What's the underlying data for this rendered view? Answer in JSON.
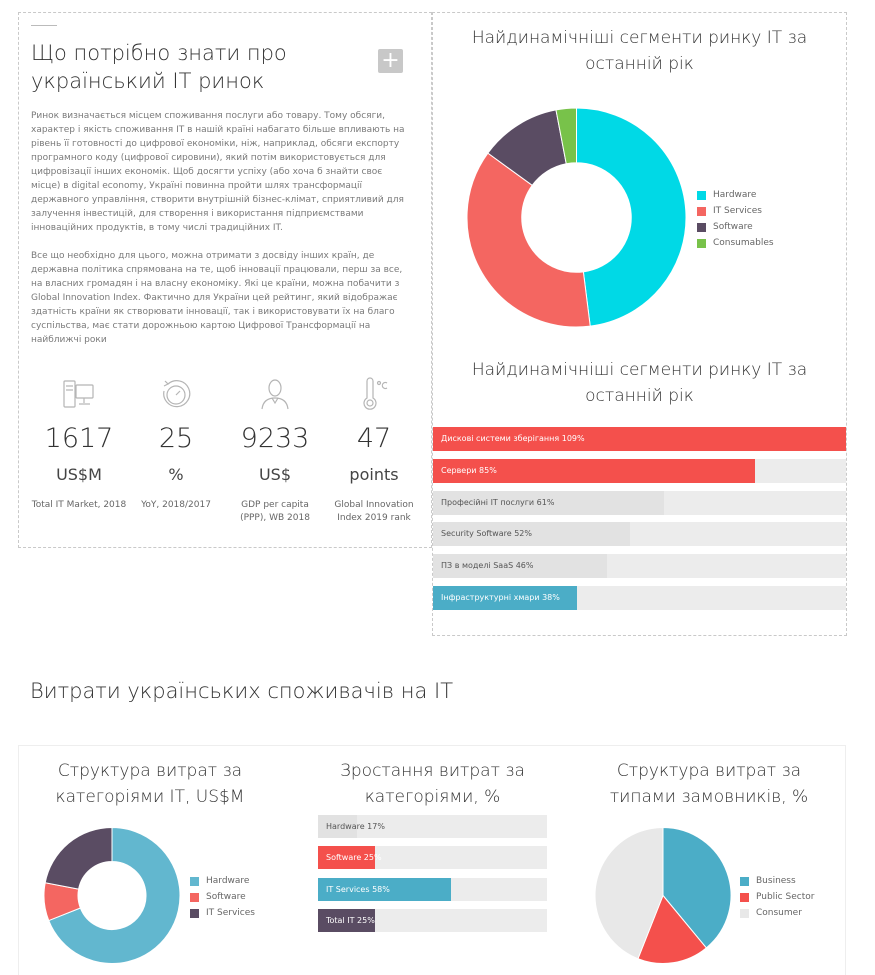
{
  "info": {
    "title": "Що потрібно знати про український IT ринок",
    "plus_icon": "+",
    "paragraph1": "Ринок визначається місцем споживання послуги або товару. Тому обсяги, характер і якість споживання IT в нашій країні набагато більше впливають на рівень її готовності до цифрової економіки, ніж, наприклад, обсяги експорту програмного коду (цифрової сировини), який потім використовується для цифровізації інших економік. Щоб досягти успіху (або хоча б знайти своє місце) в digital economy, Україні повинна пройти шлях трансформації державного управління, створити внутрішній бізнес-клімат, сприятливий для залучення інвестицій, для створення і використання підприємствами інноваційних продуктів, в тому числі традиційних IT.",
    "paragraph2": "Все що необхідно для цього, можна отримати з досвіду інших країн, де державна політика спрямована на те, щоб інновації працювали, перш за все, на власних громадян і на власну економіку. Які це країни, можна побачити з Global Innovation Index. Фактично для України цей рейтинг, який відображає здатність країни як створювати інновації, так і використовувати їх на благо суспільства, має стати дорожньою картою Цифрової Трансформації на найближчі роки",
    "stats": [
      {
        "icon": "computer-icon",
        "value": "1617",
        "unit": "US$M",
        "caption": "Total IT Market, 2018"
      },
      {
        "icon": "speedometer-icon",
        "value": "25",
        "unit": "%",
        "caption": "YoY, 2018/2017"
      },
      {
        "icon": "person-icon",
        "value": "9233",
        "unit": "US$",
        "caption": "GDP per capita (PPP), WB 2018"
      },
      {
        "icon": "thermometer-icon",
        "value": "47",
        "unit": "points",
        "caption": "Global Innovation Index 2019 rank"
      }
    ]
  },
  "segments_pie": {
    "title": "Найдинамічніші сегменти ринку IT за останній рік",
    "legend": [
      "Hardware",
      "IT Services",
      "Software",
      "Consumables"
    ],
    "colors": {
      "Hardware": "#00d9e6",
      "IT Services": "#f46661",
      "Software": "#5a4c63",
      "Consumables": "#78c24a"
    }
  },
  "segments_bars": {
    "title": "Найдинамічніші сегменти ринку IT за останній рік",
    "colors": {
      "red": "#f4504c",
      "blue": "#4badc7"
    },
    "items": [
      {
        "label": "Дискові системи зберігання 109%"
      },
      {
        "label": "Сервери 85%"
      },
      {
        "label": "Професійні IT послуги 61%"
      },
      {
        "label": "Security Software 52%"
      },
      {
        "label": "ПЗ в моделі SaaS 46%"
      },
      {
        "label": "Інфраструктурні хмари 38%"
      }
    ]
  },
  "consumer_heading": "Витрати українських споживачів на IT",
  "structure_categories": {
    "title": "Структура витрат за категоріями IT, US$M",
    "legend": [
      "Hardware",
      "Software",
      "IT Services"
    ],
    "colors": {
      "Hardware": "#62b7cf",
      "Software": "#f46661",
      "IT Services": "#5a4c63"
    }
  },
  "growth_categories": {
    "title": "Зростання витрат за категоріями, %",
    "items": [
      {
        "label": "Hardware 17%"
      },
      {
        "label": "Software 25%"
      },
      {
        "label": "IT Services 58%"
      },
      {
        "label": "Total IT 25%"
      }
    ]
  },
  "structure_customers": {
    "title": "Структура витрат за типами замовників, %",
    "legend": [
      "Business",
      "Public Sector",
      "Consumer"
    ],
    "colors": {
      "Business": "#4badc7",
      "Public Sector": "#f4504c",
      "Consumer": "#e8e8e8"
    }
  },
  "chart_data": [
    {
      "type": "pie",
      "title": "Найдинамічніші сегменти ринку IT за останній рік",
      "categories": [
        "Hardware",
        "IT Services",
        "Software",
        "Consumables"
      ],
      "values": [
        48,
        37,
        12,
        3
      ]
    },
    {
      "type": "bar",
      "title": "Найдинамічніші сегменти ринку IT за останній рік",
      "categories": [
        "Дискові системи зберігання",
        "Сервери",
        "Професійні IT послуги",
        "Security Software",
        "ПЗ в моделі SaaS",
        "Інфраструктурні хмари"
      ],
      "values": [
        109,
        85,
        61,
        52,
        46,
        38
      ],
      "xlim": [
        0,
        109
      ]
    },
    {
      "type": "pie",
      "title": "Структура витрат за категоріями IT, US$M",
      "categories": [
        "Hardware",
        "Software",
        "IT Services"
      ],
      "values": [
        69,
        9,
        22
      ]
    },
    {
      "type": "bar",
      "title": "Зростання витрат за категоріями, %",
      "categories": [
        "Hardware",
        "Software",
        "IT Services",
        "Total IT"
      ],
      "values": [
        17,
        25,
        58,
        25
      ],
      "xlim": [
        0,
        100
      ]
    },
    {
      "type": "pie",
      "title": "Структура витрат за типами замовників, %",
      "categories": [
        "Business",
        "Public Sector",
        "Consumer"
      ],
      "values": [
        39,
        17,
        44
      ]
    }
  ]
}
